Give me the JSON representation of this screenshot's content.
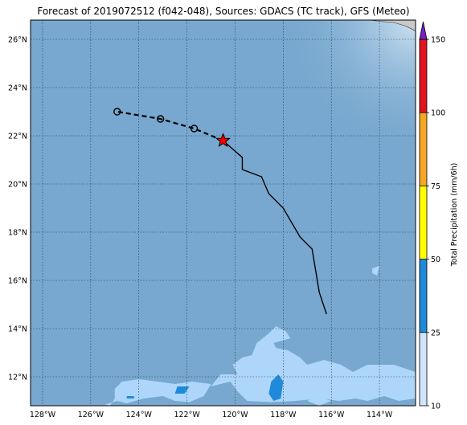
{
  "title": "Forecast of 2019072512 (f042-048), Sources: GDACS (TC track), GFS (Meteo)",
  "map": {
    "lon_range": [
      -128.5,
      -112.5
    ],
    "lat_range": [
      10.8,
      26.8
    ],
    "lon_ticks": [
      -128,
      -126,
      -124,
      -122,
      -120,
      -118,
      -116,
      -114
    ],
    "lat_ticks": [
      12,
      14,
      16,
      18,
      20,
      22,
      24,
      26
    ],
    "lon_tick_labels": [
      "128°W",
      "126°W",
      "124°W",
      "122°W",
      "120°W",
      "118°W",
      "116°W",
      "114°W"
    ],
    "lat_tick_labels": [
      "12°N",
      "14°N",
      "16°N",
      "18°N",
      "20°N",
      "22°N",
      "24°N",
      "26°N"
    ],
    "ocean_color": "#78a8cf",
    "land_color": "#c9c9c9",
    "grid": "dotted"
  },
  "tc_track": {
    "observed": [
      {
        "lon": -116.2,
        "lat": 14.6
      },
      {
        "lon": -116.5,
        "lat": 15.5
      },
      {
        "lon": -116.8,
        "lat": 17.3
      },
      {
        "lon": -117.3,
        "lat": 17.8
      },
      {
        "lon": -118.0,
        "lat": 19.0
      },
      {
        "lon": -118.6,
        "lat": 19.6
      },
      {
        "lon": -118.9,
        "lat": 20.3
      },
      {
        "lon": -119.7,
        "lat": 20.6
      },
      {
        "lon": -119.7,
        "lat": 21.1
      },
      {
        "lon": -120.5,
        "lat": 21.8
      }
    ],
    "current_position": {
      "lon": -120.5,
      "lat": 21.8
    },
    "forecast": [
      {
        "lon": -121.7,
        "lat": 22.3
      },
      {
        "lon": -123.1,
        "lat": 22.7
      },
      {
        "lon": -124.9,
        "lat": 23.0
      }
    ]
  },
  "precip_areas": [
    {
      "level": "10-25",
      "color": "#aed6fa",
      "points": [
        [
          -124.9,
          11.0
        ],
        [
          -124.5,
          10.9
        ],
        [
          -123.8,
          11.1
        ],
        [
          -123.0,
          11.2
        ],
        [
          -122.5,
          11.0
        ],
        [
          -121.9,
          10.95
        ],
        [
          -121.3,
          11.2
        ],
        [
          -121.0,
          11.7
        ],
        [
          -121.8,
          11.8
        ],
        [
          -122.5,
          11.7
        ],
        [
          -123.2,
          11.8
        ],
        [
          -124.0,
          11.9
        ],
        [
          -124.7,
          11.8
        ],
        [
          -125.0,
          11.5
        ],
        [
          -125.0,
          11.1
        ],
        [
          -125.2,
          10.8
        ],
        [
          -125.4,
          10.85
        ]
      ]
    },
    {
      "level": "10-25",
      "color": "#aed6fa",
      "points": [
        [
          -121.0,
          11.6
        ],
        [
          -120.2,
          11.8
        ],
        [
          -119.9,
          11.4
        ],
        [
          -119.5,
          11.0
        ],
        [
          -118.5,
          10.95
        ],
        [
          -117.5,
          11.0
        ],
        [
          -116.4,
          11.1
        ],
        [
          -115.7,
          11.0
        ],
        [
          -115.0,
          11.1
        ],
        [
          -114.5,
          11.0
        ],
        [
          -113.8,
          11.2
        ],
        [
          -113.2,
          11.0
        ],
        [
          -112.5,
          11.1
        ],
        [
          -112.5,
          12.2
        ],
        [
          -113.4,
          12.5
        ],
        [
          -114.5,
          12.5
        ],
        [
          -115.1,
          12.2
        ],
        [
          -115.6,
          12.5
        ],
        [
          -116.3,
          12.7
        ],
        [
          -117.0,
          12.5
        ],
        [
          -117.3,
          12.8
        ],
        [
          -117.8,
          13.1
        ],
        [
          -118.3,
          13.2
        ],
        [
          -118.4,
          13.4
        ],
        [
          -117.7,
          13.6
        ],
        [
          -117.9,
          13.9
        ],
        [
          -118.3,
          14.1
        ],
        [
          -118.6,
          13.8
        ],
        [
          -119.1,
          13.4
        ],
        [
          -119.3,
          12.9
        ],
        [
          -119.7,
          12.8
        ],
        [
          -120.1,
          12.5
        ],
        [
          -119.9,
          12.1
        ],
        [
          -120.6,
          12.1
        ],
        [
          -121.0,
          11.6
        ]
      ]
    },
    {
      "level": "10-25",
      "color": "#aed6fa",
      "points": [
        [
          -117.0,
          11.0
        ],
        [
          -116.5,
          10.8
        ],
        [
          -116.0,
          11.0
        ],
        [
          -116.6,
          11.2
        ]
      ]
    },
    {
      "level": "10-25",
      "color": "#aed6fa",
      "points": [
        [
          -114.3,
          16.3
        ],
        [
          -114.1,
          16.2
        ],
        [
          -114.0,
          16.6
        ],
        [
          -114.3,
          16.5
        ]
      ]
    },
    {
      "level": "25-50",
      "color": "#1f8ad9",
      "points": [
        [
          -118.6,
          11.3
        ],
        [
          -118.4,
          11.0
        ],
        [
          -118.1,
          11.1
        ],
        [
          -118.0,
          11.8
        ],
        [
          -118.2,
          12.1
        ],
        [
          -118.5,
          11.8
        ]
      ]
    },
    {
      "level": "25-50",
      "color": "#1f8ad9",
      "points": [
        [
          -122.5,
          11.3
        ],
        [
          -122.1,
          11.3
        ],
        [
          -121.9,
          11.6
        ],
        [
          -122.4,
          11.6
        ]
      ]
    },
    {
      "level": "25-50",
      "color": "#1f8ad9",
      "points": [
        [
          -124.5,
          11.1
        ],
        [
          -124.2,
          11.1
        ],
        [
          -124.2,
          11.2
        ],
        [
          -124.5,
          11.2
        ]
      ]
    }
  ],
  "land_patches": [
    {
      "points": [
        [
          -114.4,
          26.8
        ],
        [
          -112.5,
          26.8
        ],
        [
          -112.5,
          26.35
        ],
        [
          -112.9,
          26.55
        ],
        [
          -113.4,
          26.7
        ],
        [
          -114.0,
          26.75
        ]
      ]
    }
  ],
  "colorbar": {
    "label": "Total Precipitation (mm/6h)",
    "ticks": [
      "10",
      "25",
      "50",
      "75",
      "100",
      "150"
    ],
    "segments": [
      {
        "range": "10-25",
        "color": "#cfe6fc"
      },
      {
        "range": "25-50",
        "color": "#1f8ad9"
      },
      {
        "range": "50-75",
        "color": "#ffff00"
      },
      {
        "range": "75-100",
        "color": "#f5a623"
      },
      {
        "range": "100-150",
        "color": "#e0141e"
      }
    ],
    "extend_color": "#7b1fc8"
  }
}
